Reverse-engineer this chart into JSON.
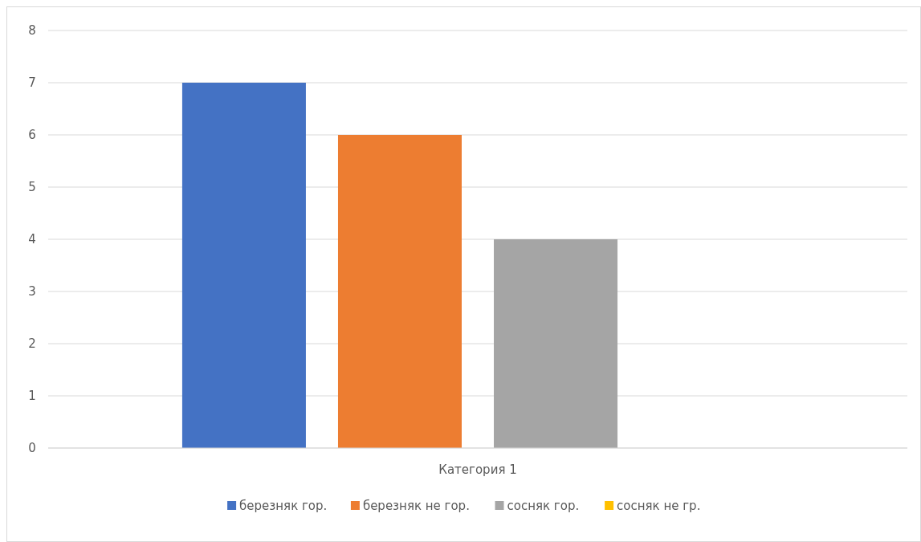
{
  "chart_data": {
    "type": "bar",
    "categories": [
      "Категория 1"
    ],
    "series": [
      {
        "name": "березняк гор.",
        "color": "#4472c4",
        "values": [
          7
        ]
      },
      {
        "name": "березняк не гор.",
        "color": "#ed7d31",
        "values": [
          6
        ]
      },
      {
        "name": "сосняк гор.",
        "color": "#a5a5a5",
        "values": [
          4
        ]
      },
      {
        "name": "сосняк не гр.",
        "color": "#ffc000",
        "values": [
          0
        ]
      }
    ],
    "ylim": [
      0,
      8
    ],
    "yticks": [
      0,
      1,
      2,
      3,
      4,
      5,
      6,
      7,
      8
    ],
    "grid": "y",
    "legend": "bottom"
  }
}
